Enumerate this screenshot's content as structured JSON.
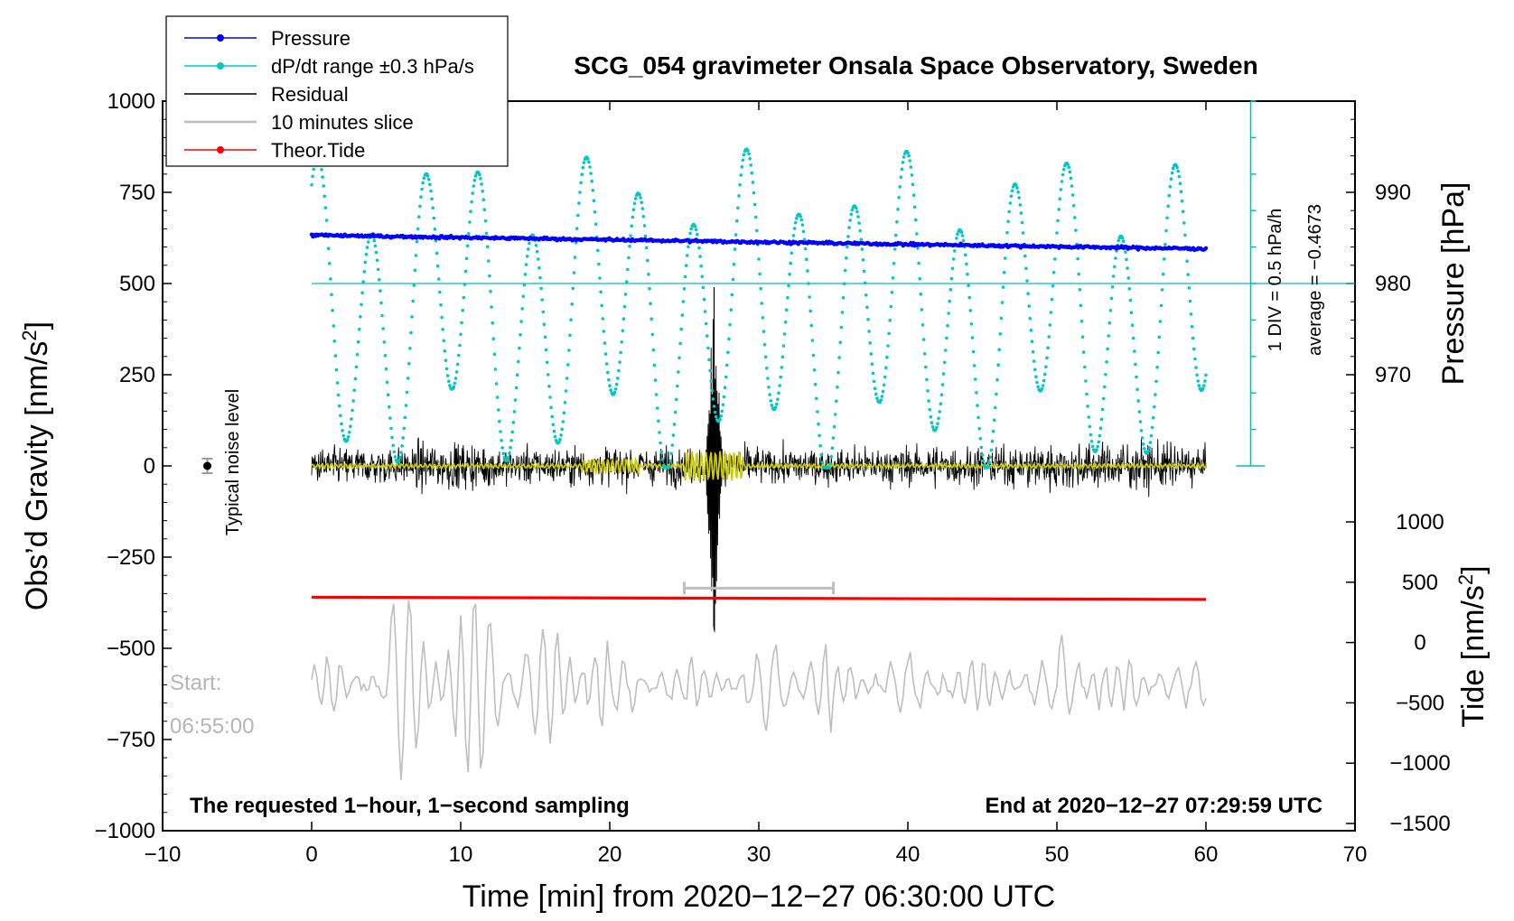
{
  "chart_data": {
    "type": "line",
    "title": "SCG_054 gravimeter Onsala Space Observatory, Sweden",
    "xlabel": "Time [min] from 2020−12−27 06:30:00 UTC",
    "xlim": [
      -10,
      70
    ],
    "x_ticks": [
      "−10",
      "0",
      "10",
      "20",
      "30",
      "40",
      "50",
      "60",
      "70"
    ],
    "left_axis": {
      "label": "Obs’d Gravity [nm/s",
      "label_sup": "2",
      "label_end": "]",
      "ylim": [
        -1000,
        1000
      ],
      "ticks": [
        "−1000",
        "−750",
        "−500",
        "−250",
        "0",
        "250",
        "500",
        "750",
        "1000"
      ]
    },
    "right_upper_axis": {
      "label": "Pressure [hPa]",
      "range_hPa": [
        960,
        1000
      ],
      "ticks": [
        "970",
        "980",
        "990"
      ]
    },
    "right_lower_axis": {
      "label": "Tide [nm/s",
      "label_sup": "2",
      "label_end": "]",
      "ticks": [
        "1000",
        "500",
        "0",
        "−500",
        "−1000",
        "−1500"
      ]
    },
    "legend": [
      {
        "label": "Pressure",
        "color": "#0000ff",
        "marker": true
      },
      {
        "label": "dP/dt range ±0.3 hPa/s",
        "color": "#00c8c8",
        "marker": true
      },
      {
        "label": "Residual",
        "color": "#000000",
        "marker": false
      },
      {
        "label": "10 minutes slice",
        "color": "#bebebe",
        "marker": false
      },
      {
        "label": "Theor.Tide",
        "color": "#ff0000",
        "marker": true
      }
    ],
    "series": [
      {
        "name": "Pressure",
        "x_range": [
          0,
          60
        ],
        "start_hPa": 985.3,
        "end_hPa": 983.8,
        "color": "#0000ff"
      },
      {
        "name": "dP/dt",
        "x_range": [
          0,
          60
        ],
        "average": -0.4673,
        "color": "#00c8c8"
      },
      {
        "name": "Residual",
        "x_range": [
          0,
          60
        ],
        "typical_amplitude": 150,
        "spike_at_min": 27,
        "spike_max": 490,
        "spike_min": -450,
        "color": "#000000"
      },
      {
        "name": "Theor.Tide",
        "x_range": [
          0,
          60
        ],
        "start_left_units": -360,
        "end_left_units": -366,
        "color": "#ff0000"
      },
      {
        "name": "10 minutes slice",
        "x_range": [
          0,
          60
        ],
        "center_left_units": -600,
        "color": "#bebebe"
      },
      {
        "name": "Filtered residual",
        "x_range": [
          0,
          60
        ],
        "color": "#cccc00"
      }
    ],
    "slice_bracket_min": [
      25,
      35
    ],
    "noise_level": {
      "x_min": -7,
      "value": 0,
      "err": 20
    },
    "dpdt_scale": {
      "text1": "1 DIV = 0.5 hPa/h",
      "text2": "average = −0.4673",
      "zero_left_units": 0,
      "ref_left_units": 500
    },
    "noise_label": "Typical noise level",
    "start_label1": "Start:",
    "start_label2": "06:55:00",
    "sampling_note": "The requested 1−hour, 1−second sampling",
    "end_note": "End at 2020−12−27 07:29:59 UTC"
  }
}
